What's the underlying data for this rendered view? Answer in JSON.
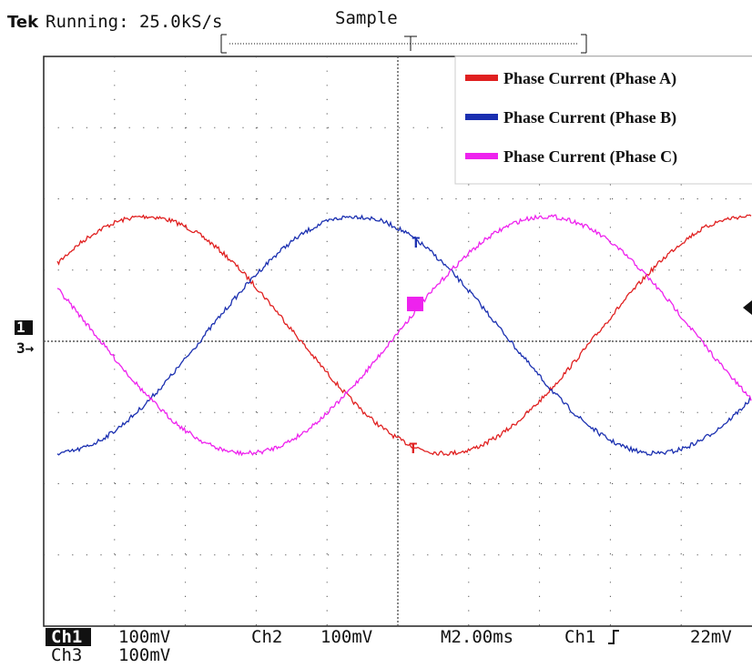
{
  "header": {
    "brand": "Tek",
    "status": "Running: 25.0kS/s",
    "mode": "Sample"
  },
  "legend": [
    {
      "name": "Phase Current (Phase A)",
      "color": "#e02020"
    },
    {
      "name": "Phase Current (Phase B)",
      "color": "#1a2fb0"
    },
    {
      "name": "Phase Current (Phase C)",
      "color": "#ee22ee"
    }
  ],
  "footer": {
    "ch1": "Ch1",
    "ch1_scale": "100mV",
    "ch2": "Ch2",
    "ch2_scale": "100mV",
    "timebase": "M2.00ms",
    "trigger_source": "Ch1",
    "trigger_level": "22mV",
    "ch3": "Ch3",
    "ch3_scale": "100mV"
  }
}
